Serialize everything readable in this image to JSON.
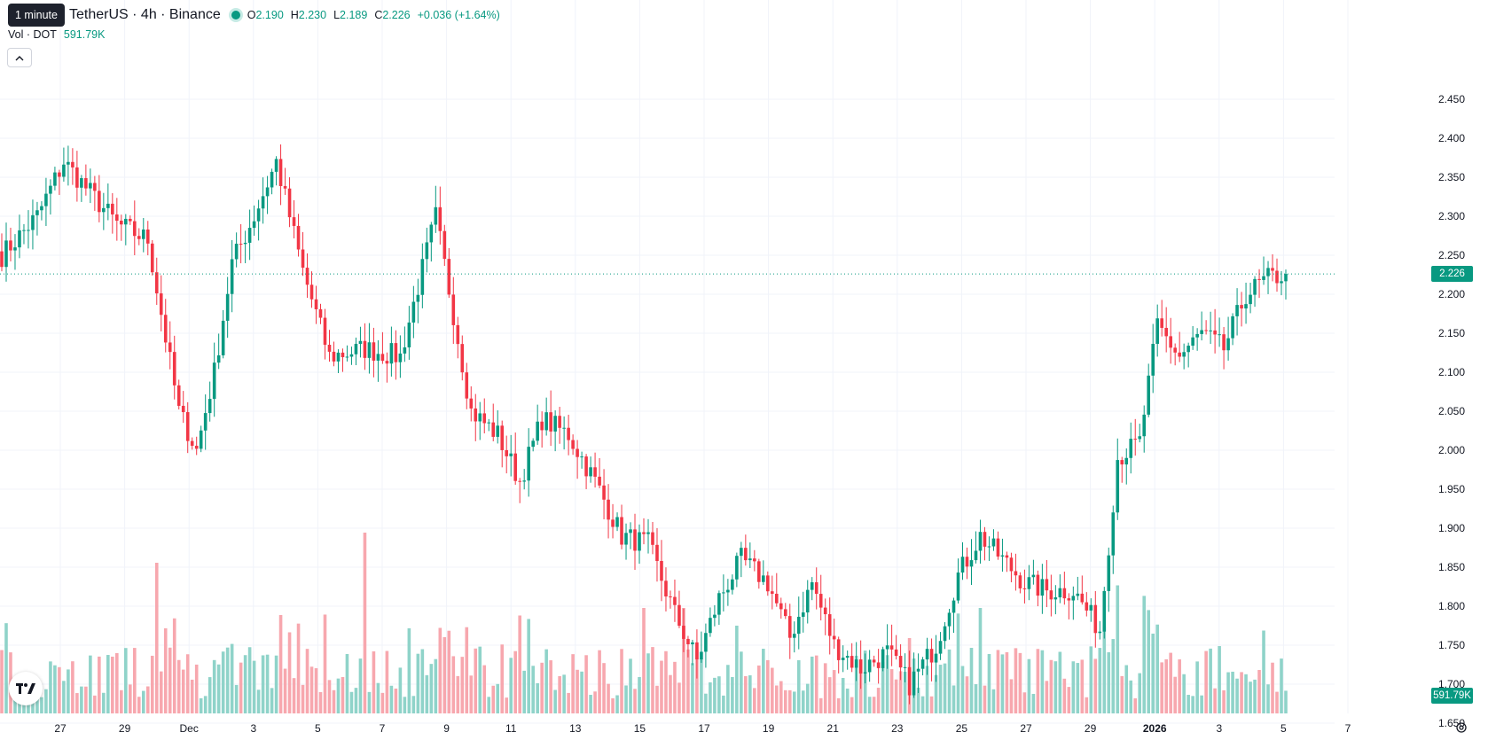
{
  "header": {
    "symbol": "TetherUS · 4h · Binance",
    "tooltip": "1 minute",
    "ohlc": [
      {
        "k": "O",
        "v": "2.190"
      },
      {
        "k": "H",
        "v": "2.230"
      },
      {
        "k": "L",
        "v": "2.189"
      },
      {
        "k": "C",
        "v": "2.226"
      }
    ],
    "change": "+0.036 (+1.64%)",
    "volume_label": "Vol · DOT",
    "volume_value": "591.79K",
    "collapse_icon": "chevron-up-icon"
  },
  "price_tag": "2.226",
  "volume_tag": "591.79K",
  "colors": {
    "up": "#089981",
    "down": "#f23645",
    "vol_up": "#8fd3c9",
    "vol_down": "#f7a7ae",
    "grid": "#f0f3fa"
  },
  "chart_data": {
    "type": "candlestick",
    "y_axis": {
      "ticks": [
        "1.650",
        "1.700",
        "1.750",
        "1.800",
        "1.850",
        "1.900",
        "1.950",
        "2.000",
        "2.050",
        "2.100",
        "2.150",
        "2.200",
        "2.250",
        "2.300",
        "2.350",
        "2.400",
        "2.450"
      ],
      "range": [
        1.6,
        2.47
      ],
      "last_price": 2.226
    },
    "x_axis": {
      "ticks": [
        "27",
        "29",
        "Dec",
        "3",
        "5",
        "7",
        "9",
        "11",
        "13",
        "15",
        "17",
        "19",
        "21",
        "23",
        "25",
        "27",
        "29",
        "2026",
        "3",
        "5",
        "7"
      ],
      "bold_ticks": [
        "2026"
      ]
    },
    "last_volume": "591.79K",
    "anchors": [
      {
        "i": 0,
        "p": 2.25
      },
      {
        "i": 8,
        "p": 2.3
      },
      {
        "i": 14,
        "p": 2.37
      },
      {
        "i": 20,
        "p": 2.33
      },
      {
        "i": 26,
        "p": 2.29
      },
      {
        "i": 33,
        "p": 2.27
      },
      {
        "i": 40,
        "p": 2.05
      },
      {
        "i": 44,
        "p": 2.0
      },
      {
        "i": 48,
        "p": 2.1
      },
      {
        "i": 52,
        "p": 2.24
      },
      {
        "i": 57,
        "p": 2.3
      },
      {
        "i": 62,
        "p": 2.37
      },
      {
        "i": 68,
        "p": 2.23
      },
      {
        "i": 74,
        "p": 2.12
      },
      {
        "i": 82,
        "p": 2.13
      },
      {
        "i": 90,
        "p": 2.12
      },
      {
        "i": 94,
        "p": 2.21
      },
      {
        "i": 98,
        "p": 2.3
      },
      {
        "i": 106,
        "p": 2.05
      },
      {
        "i": 112,
        "p": 2.02
      },
      {
        "i": 117,
        "p": 1.96
      },
      {
        "i": 122,
        "p": 2.04
      },
      {
        "i": 128,
        "p": 2.02
      },
      {
        "i": 134,
        "p": 1.96
      },
      {
        "i": 140,
        "p": 1.89
      },
      {
        "i": 146,
        "p": 1.88
      },
      {
        "i": 152,
        "p": 1.79
      },
      {
        "i": 157,
        "p": 1.73
      },
      {
        "i": 162,
        "p": 1.81
      },
      {
        "i": 167,
        "p": 1.86
      },
      {
        "i": 173,
        "p": 1.83
      },
      {
        "i": 178,
        "p": 1.76
      },
      {
        "i": 183,
        "p": 1.83
      },
      {
        "i": 188,
        "p": 1.75
      },
      {
        "i": 194,
        "p": 1.72
      },
      {
        "i": 200,
        "p": 1.74
      },
      {
        "i": 205,
        "p": 1.7
      },
      {
        "i": 211,
        "p": 1.75
      },
      {
        "i": 216,
        "p": 1.84
      },
      {
        "i": 221,
        "p": 1.89
      },
      {
        "i": 226,
        "p": 1.86
      },
      {
        "i": 231,
        "p": 1.83
      },
      {
        "i": 236,
        "p": 1.82
      },
      {
        "i": 242,
        "p": 1.82
      },
      {
        "i": 248,
        "p": 1.77
      },
      {
        "i": 252,
        "p": 1.99
      },
      {
        "i": 257,
        "p": 2.01
      },
      {
        "i": 261,
        "p": 2.16
      },
      {
        "i": 266,
        "p": 2.12
      },
      {
        "i": 271,
        "p": 2.15
      },
      {
        "i": 276,
        "p": 2.13
      },
      {
        "i": 281,
        "p": 2.2
      },
      {
        "i": 286,
        "p": 2.22
      },
      {
        "i": 290,
        "p": 2.226
      }
    ],
    "volume_spikes": [
      {
        "i": 35,
        "v": 1.0
      },
      {
        "i": 82,
        "v": 1.2
      },
      {
        "i": 117,
        "v": 0.65
      },
      {
        "i": 145,
        "v": 0.7
      },
      {
        "i": 154,
        "v": 0.7
      },
      {
        "i": 205,
        "v": 0.5
      },
      {
        "i": 221,
        "v": 0.7
      },
      {
        "i": 252,
        "v": 0.85
      },
      {
        "i": 258,
        "v": 0.78
      },
      {
        "i": 285,
        "v": 0.55
      }
    ]
  }
}
